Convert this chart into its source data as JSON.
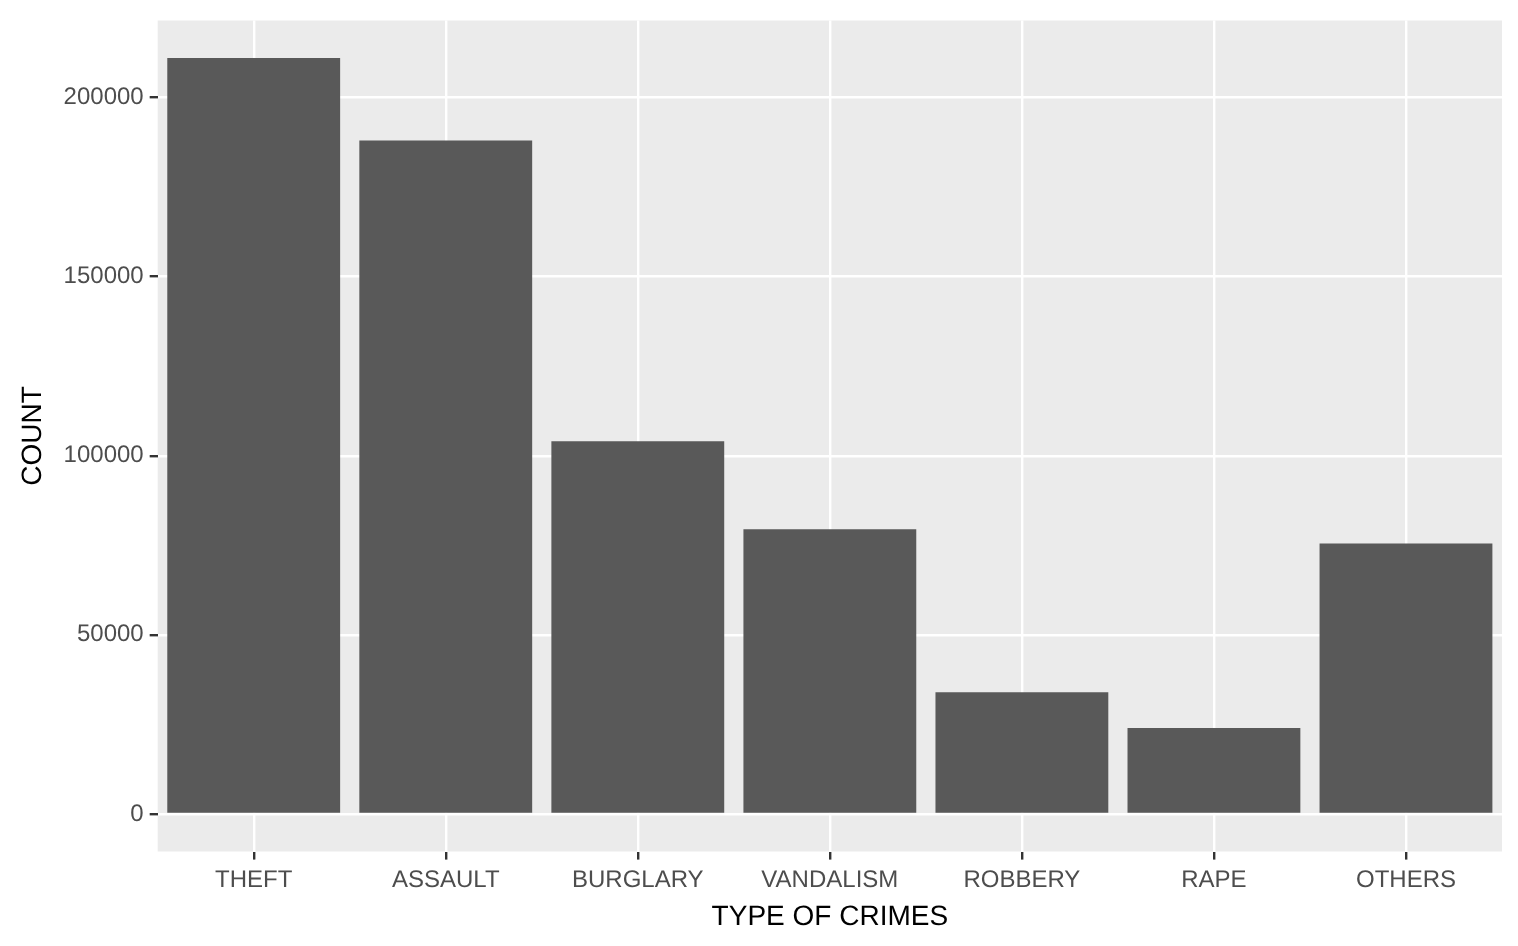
{
  "chart_data": {
    "type": "bar",
    "xlabel": "TYPE OF CRIMES",
    "ylabel": "COUNT",
    "categories": [
      "THEFT",
      "ASSAULT",
      "BURGLARY",
      "VANDALISM",
      "ROBBERY",
      "RAPE",
      "OTHERS"
    ],
    "values": [
      211000,
      188000,
      104000,
      79500,
      34000,
      24000,
      75500
    ],
    "color": "#595959",
    "ylim": [
      -10500,
      221500
    ],
    "yticks": [
      0,
      50000,
      100000,
      150000,
      200000
    ],
    "grid": true
  }
}
